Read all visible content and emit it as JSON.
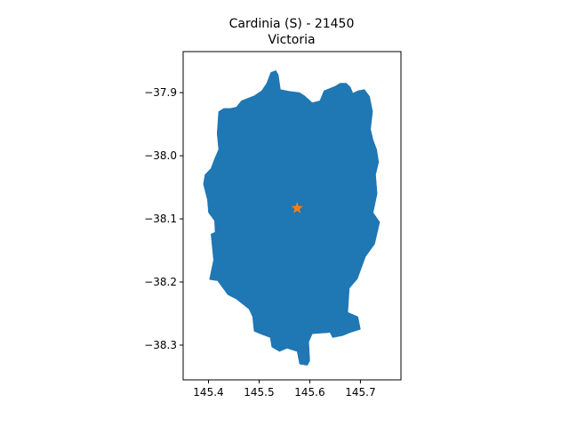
{
  "title_line1": "Cardinia (S) - 21450",
  "title_line2": "Victoria",
  "colors": {
    "region_fill": "#1f77b4",
    "marker_fill": "#ff7f0e",
    "axes": "#000000",
    "background": "#ffffff"
  },
  "map": {
    "region_name": "Cardinia (S) - 21450",
    "state": "Victoria",
    "marker": {
      "shape": "star",
      "lon": 145.575,
      "lat": -38.083
    },
    "xlim": [
      145.35,
      145.78
    ],
    "ylim": [
      -38.355,
      -37.835
    ],
    "x_ticks": [
      {
        "value": 145.4,
        "label": "145.4"
      },
      {
        "value": 145.5,
        "label": "145.5"
      },
      {
        "value": 145.6,
        "label": "145.6"
      },
      {
        "value": 145.7,
        "label": "145.7"
      }
    ],
    "y_ticks": [
      {
        "value": -37.9,
        "label": "−37.9"
      },
      {
        "value": -38.0,
        "label": "−38.0"
      },
      {
        "value": -38.1,
        "label": "−38.1"
      },
      {
        "value": -38.2,
        "label": "−38.2"
      },
      {
        "value": -38.3,
        "label": "−38.3"
      }
    ],
    "boundary": [
      [
        145.443,
        -37.925
      ],
      [
        145.455,
        -37.923
      ],
      [
        145.465,
        -37.913
      ],
      [
        145.49,
        -37.905
      ],
      [
        145.505,
        -37.897
      ],
      [
        145.515,
        -37.885
      ],
      [
        145.523,
        -37.868
      ],
      [
        145.533,
        -37.865
      ],
      [
        145.538,
        -37.872
      ],
      [
        145.542,
        -37.895
      ],
      [
        145.56,
        -37.898
      ],
      [
        145.58,
        -37.9
      ],
      [
        145.59,
        -37.905
      ],
      [
        145.605,
        -37.916
      ],
      [
        145.62,
        -37.913
      ],
      [
        145.628,
        -37.897
      ],
      [
        145.65,
        -37.89
      ],
      [
        145.66,
        -37.885
      ],
      [
        145.672,
        -37.885
      ],
      [
        145.68,
        -37.891
      ],
      [
        145.685,
        -37.901
      ],
      [
        145.695,
        -37.897
      ],
      [
        145.708,
        -37.895
      ],
      [
        145.718,
        -37.906
      ],
      [
        145.724,
        -37.93
      ],
      [
        145.72,
        -37.958
      ],
      [
        145.725,
        -37.975
      ],
      [
        145.732,
        -37.99
      ],
      [
        145.736,
        -38.01
      ],
      [
        145.73,
        -38.03
      ],
      [
        145.733,
        -38.06
      ],
      [
        145.725,
        -38.09
      ],
      [
        145.738,
        -38.105
      ],
      [
        145.728,
        -38.14
      ],
      [
        145.71,
        -38.16
      ],
      [
        145.694,
        -38.195
      ],
      [
        145.678,
        -38.21
      ],
      [
        145.675,
        -38.248
      ],
      [
        145.695,
        -38.255
      ],
      [
        145.7,
        -38.275
      ],
      [
        145.68,
        -38.28
      ],
      [
        145.665,
        -38.285
      ],
      [
        145.645,
        -38.288
      ],
      [
        145.64,
        -38.28
      ],
      [
        145.605,
        -38.282
      ],
      [
        145.598,
        -38.295
      ],
      [
        145.6,
        -38.325
      ],
      [
        145.595,
        -38.332
      ],
      [
        145.58,
        -38.33
      ],
      [
        145.575,
        -38.31
      ],
      [
        145.555,
        -38.305
      ],
      [
        145.54,
        -38.31
      ],
      [
        145.525,
        -38.303
      ],
      [
        145.522,
        -38.288
      ],
      [
        145.505,
        -38.283
      ],
      [
        145.49,
        -38.278
      ],
      [
        145.487,
        -38.255
      ],
      [
        145.48,
        -38.243
      ],
      [
        145.455,
        -38.227
      ],
      [
        145.438,
        -38.22
      ],
      [
        145.418,
        -38.198
      ],
      [
        145.402,
        -38.196
      ],
      [
        145.41,
        -38.165
      ],
      [
        145.405,
        -38.124
      ],
      [
        145.413,
        -38.121
      ],
      [
        145.412,
        -38.103
      ],
      [
        145.4,
        -38.09
      ],
      [
        145.398,
        -38.07
      ],
      [
        145.39,
        -38.045
      ],
      [
        145.393,
        -38.03
      ],
      [
        145.405,
        -38.02
      ],
      [
        145.412,
        -38.005
      ],
      [
        145.42,
        -37.99
      ],
      [
        145.417,
        -37.965
      ],
      [
        145.42,
        -37.93
      ],
      [
        145.43,
        -37.925
      ]
    ]
  }
}
